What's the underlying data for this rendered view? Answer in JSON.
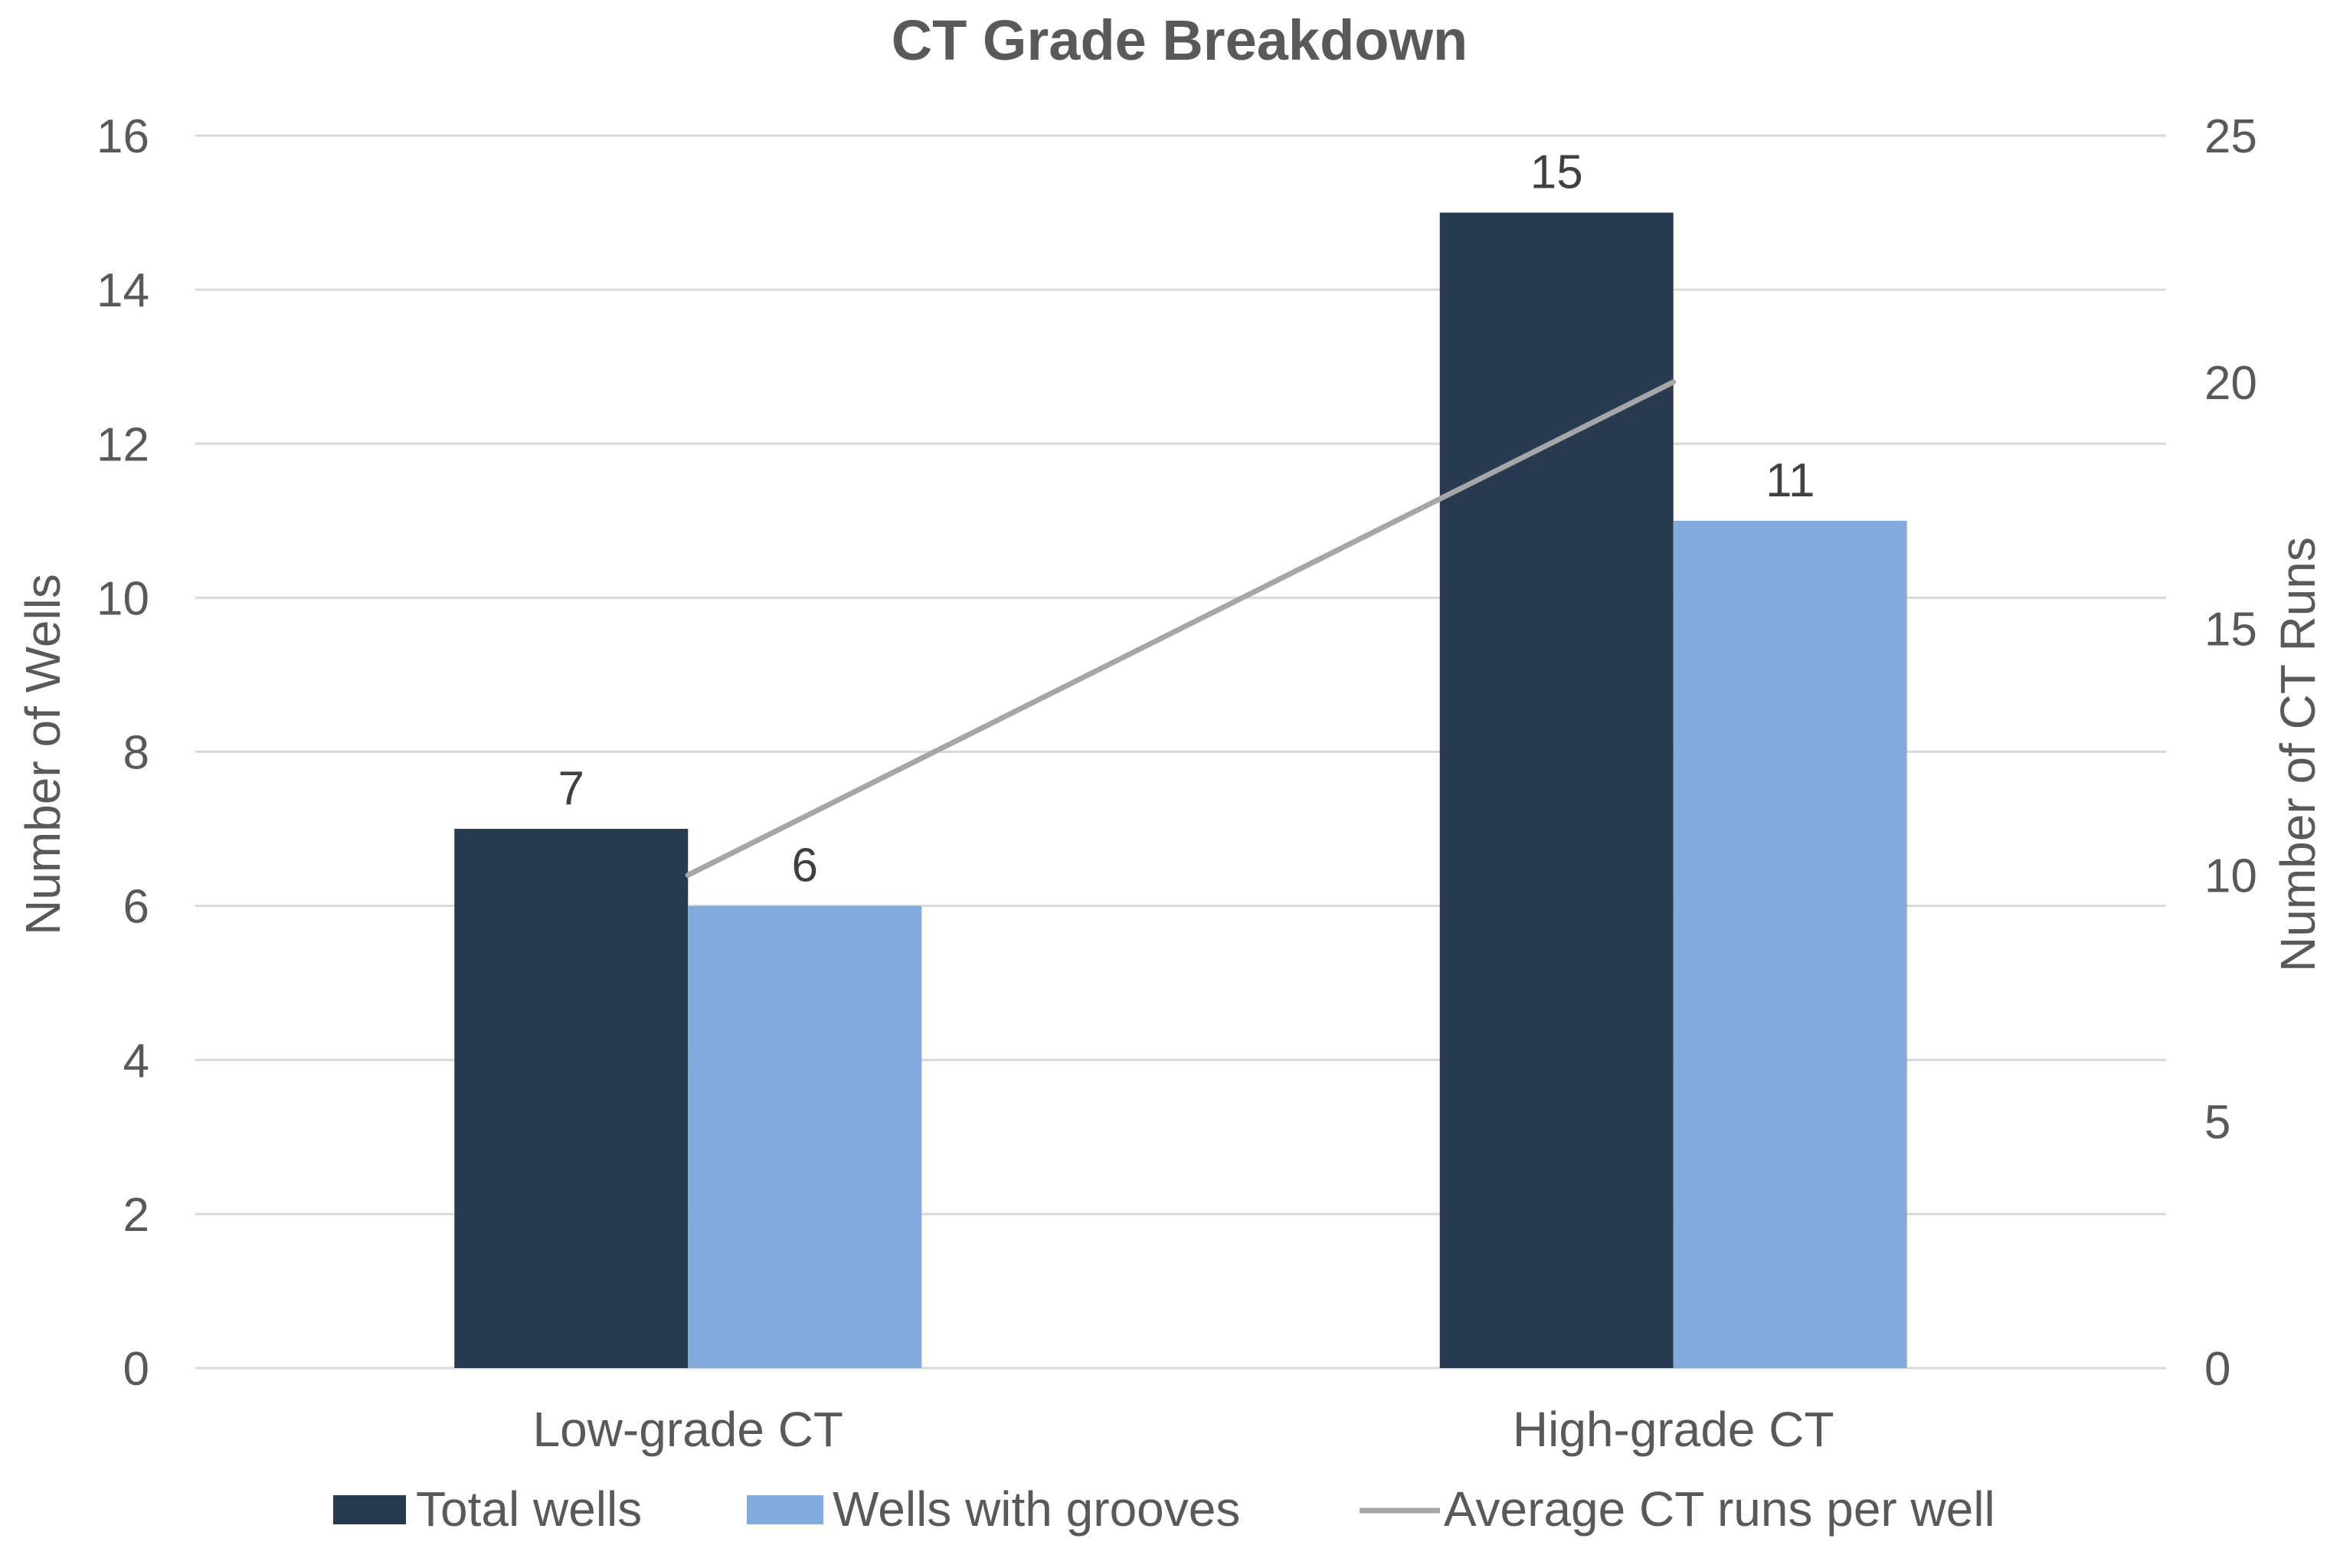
{
  "chart_data": {
    "type": "bar",
    "title": "CT Grade Breakdown",
    "categories": [
      "Low-grade CT",
      "High-grade CT"
    ],
    "series": [
      {
        "name": "Total wells",
        "type": "bar",
        "axis": "left",
        "values": [
          7,
          15
        ],
        "color": "#283a4f"
      },
      {
        "name": "Wells with grooves",
        "type": "bar",
        "axis": "left",
        "values": [
          6,
          11
        ],
        "color": "#82aadc"
      },
      {
        "name": "Average CT runs per well",
        "type": "line",
        "axis": "right",
        "values": [
          10,
          20
        ],
        "color": "#a6a6a6"
      }
    ],
    "ylabel": "Number of Wells",
    "y2label": "Number of CT Runs",
    "ylim": [
      0,
      16
    ],
    "y2lim": [
      0,
      25
    ],
    "yticks": [
      "0",
      "2",
      "4",
      "6",
      "8",
      "10",
      "12",
      "14",
      "16"
    ],
    "y2ticks": [
      "0",
      "5",
      "10",
      "15",
      "20",
      "25"
    ],
    "grid": true,
    "legend": "bottom",
    "data_labels": true
  }
}
